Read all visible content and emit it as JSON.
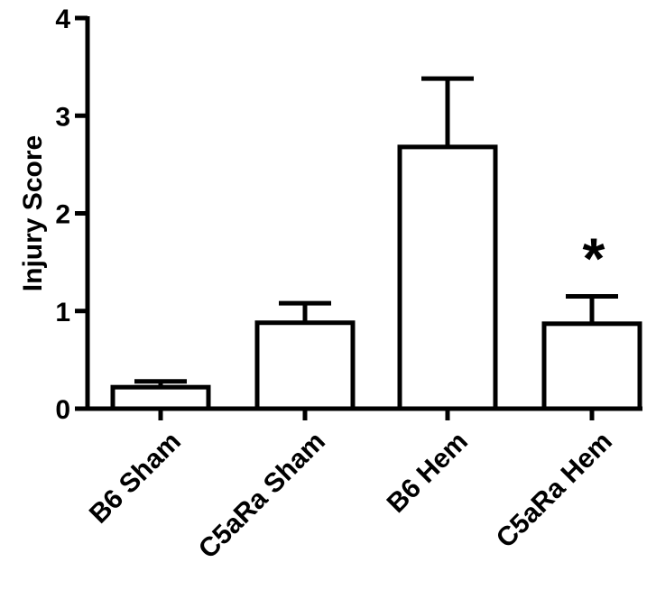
{
  "chart_data": {
    "type": "bar",
    "categories": [
      "B6 Sham",
      "C5aRa Sham",
      "B6 Hem",
      "C5aRa Hem"
    ],
    "values": [
      0.22,
      0.88,
      2.68,
      0.87
    ],
    "errors": [
      0.06,
      0.2,
      0.7,
      0.28
    ],
    "ylabel": "Injury Score",
    "ylim": [
      0,
      4
    ],
    "yticks": [
      "0",
      "1",
      "2",
      "3",
      "4"
    ],
    "grid": false,
    "annotations": [
      {
        "category": "C5aRa Hem",
        "text": "*"
      }
    ],
    "colors": {
      "bar_fill": "#ffffff",
      "stroke": "#000000"
    }
  }
}
